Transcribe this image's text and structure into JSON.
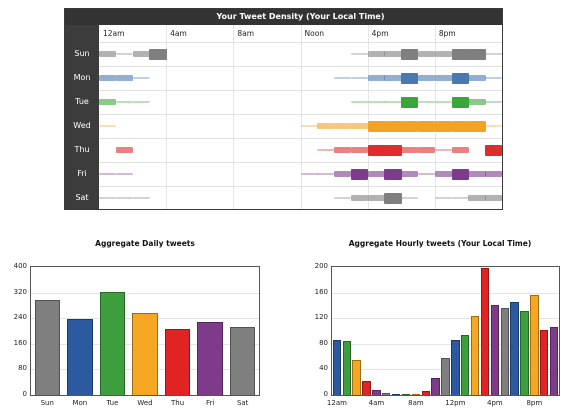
{
  "density": {
    "title": "Your Tweet Density (Your Local Time)",
    "days": [
      "Sun",
      "Mon",
      "Tue",
      "Wed",
      "Thu",
      "Fri",
      "Sat"
    ],
    "hour_labels": [
      "12am",
      "4am",
      "8am",
      "Noon",
      "4pm",
      "8pm"
    ],
    "day_colors": [
      "#7f7f7f",
      "#4a78b0",
      "#3aa63a",
      "#f2a324",
      "#df2c2c",
      "#7d3b8c",
      "#7f7f7f"
    ],
    "levels": [
      [
        2,
        1,
        2,
        3,
        0,
        0,
        0,
        0,
        0,
        0,
        0,
        0,
        0,
        0,
        0,
        1,
        2,
        2,
        3,
        2,
        2,
        3,
        3,
        1
      ],
      [
        2,
        2,
        1,
        0,
        0,
        0,
        0,
        0,
        0,
        0,
        0,
        0,
        0,
        0,
        1,
        1,
        2,
        2,
        3,
        2,
        2,
        3,
        2,
        1
      ],
      [
        2,
        1,
        1,
        0,
        0,
        0,
        0,
        0,
        0,
        0,
        0,
        0,
        0,
        0,
        0,
        1,
        1,
        1,
        3,
        1,
        1,
        3,
        2,
        1
      ],
      [
        1,
        0,
        0,
        0,
        0,
        0,
        0,
        0,
        0,
        0,
        0,
        0,
        1,
        2,
        2,
        2,
        3,
        3,
        3,
        3,
        3,
        3,
        3,
        1
      ],
      [
        0,
        2,
        0,
        0,
        0,
        0,
        0,
        0,
        0,
        0,
        0,
        0,
        0,
        1,
        2,
        2,
        3,
        3,
        2,
        2,
        1,
        2,
        0,
        3
      ],
      [
        1,
        1,
        0,
        0,
        0,
        0,
        0,
        0,
        0,
        0,
        0,
        0,
        1,
        1,
        2,
        3,
        2,
        3,
        2,
        1,
        2,
        3,
        2,
        2
      ],
      [
        1,
        1,
        1,
        0,
        0,
        0,
        0,
        0,
        0,
        0,
        0,
        0,
        0,
        0,
        1,
        2,
        2,
        3,
        1,
        0,
        1,
        1,
        2,
        2
      ]
    ]
  },
  "chart_data": [
    {
      "type": "bar",
      "title": "Aggregate Daily tweets",
      "categories": [
        "Sun",
        "Mon",
        "Tue",
        "Wed",
        "Thu",
        "Fri",
        "Sat"
      ],
      "values": [
        298,
        236,
        322,
        256,
        206,
        228,
        212
      ],
      "colors": [
        "#7f7f7f",
        "#2c5aa0",
        "#3c9e3c",
        "#f5a623",
        "#e02424",
        "#7e3b8a",
        "#7f7f7f"
      ],
      "ylim": [
        0,
        400
      ],
      "yticks": [
        "0",
        "80",
        "160",
        "240",
        "320",
        "400"
      ]
    },
    {
      "type": "bar",
      "title": "Aggregate Hourly tweets (Your Local Time)",
      "x_labels": [
        "12am",
        "4am",
        "8am",
        "12pm",
        "4pm",
        "8pm"
      ],
      "values": [
        86,
        84,
        55,
        22,
        8,
        3,
        1,
        1,
        2,
        6,
        26,
        58,
        86,
        94,
        124,
        198,
        141,
        136,
        146,
        131,
        157,
        101,
        107
      ],
      "colors": [
        "#2c5aa0",
        "#3c9e3c",
        "#f5a623",
        "#e02424",
        "#7e3b8a",
        "#7f7f7f",
        "#2c5aa0",
        "#3c9e3c",
        "#f5a623",
        "#e02424",
        "#7e3b8a",
        "#7f7f7f",
        "#2c5aa0",
        "#3c9e3c",
        "#f5a623",
        "#e02424",
        "#7e3b8a",
        "#7f7f7f",
        "#2c5aa0",
        "#3c9e3c",
        "#f5a623",
        "#e02424",
        "#7e3b8a"
      ],
      "ylim": [
        0,
        200
      ],
      "yticks": [
        "0",
        "40",
        "80",
        "120",
        "160",
        "200"
      ]
    }
  ]
}
